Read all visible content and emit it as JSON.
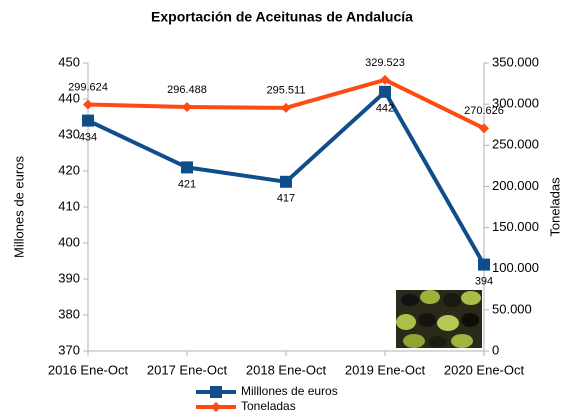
{
  "chart_data": {
    "type": "line",
    "title": "Exportación de Aceitunas de Andalucía",
    "y_label": "Millones de euros",
    "y2_label": "Toneladas",
    "categories": [
      "2016 Ene-Oct",
      "2017 Ene-Oct",
      "2018 Ene-Oct",
      "2019 Ene-Oct",
      "2020 Ene-Oct"
    ],
    "series": [
      {
        "name": "Milllones de euros",
        "color": "#104e8b",
        "values": [
          434,
          421,
          417,
          442,
          394
        ]
      },
      {
        "name": "Toneladas",
        "color": "#ff4a12",
        "axis": "y2",
        "values": [
          299624,
          296488,
          295511,
          329523,
          270626
        ],
        "value_labels": [
          "299.624",
          "296.488",
          "295.511",
          "329.523",
          "270.626"
        ]
      }
    ],
    "ylim": [
      370,
      450
    ],
    "yticks": [
      370,
      380,
      390,
      400,
      410,
      420,
      430,
      440,
      450
    ],
    "y2lim": [
      0,
      350000
    ],
    "y2ticks": [
      0,
      {
        "value": 50000,
        "label": "50.000"
      },
      {
        "value": 100000,
        "label": "100.000"
      },
      {
        "value": 150000,
        "label": "150.000"
      },
      {
        "value": 200000,
        "label": "200.000"
      },
      {
        "value": 250000,
        "label": "250.000"
      },
      {
        "value": 300000,
        "label": "300.000"
      },
      {
        "value": 350000,
        "label": "350.000"
      }
    ],
    "legend": "bottom"
  }
}
